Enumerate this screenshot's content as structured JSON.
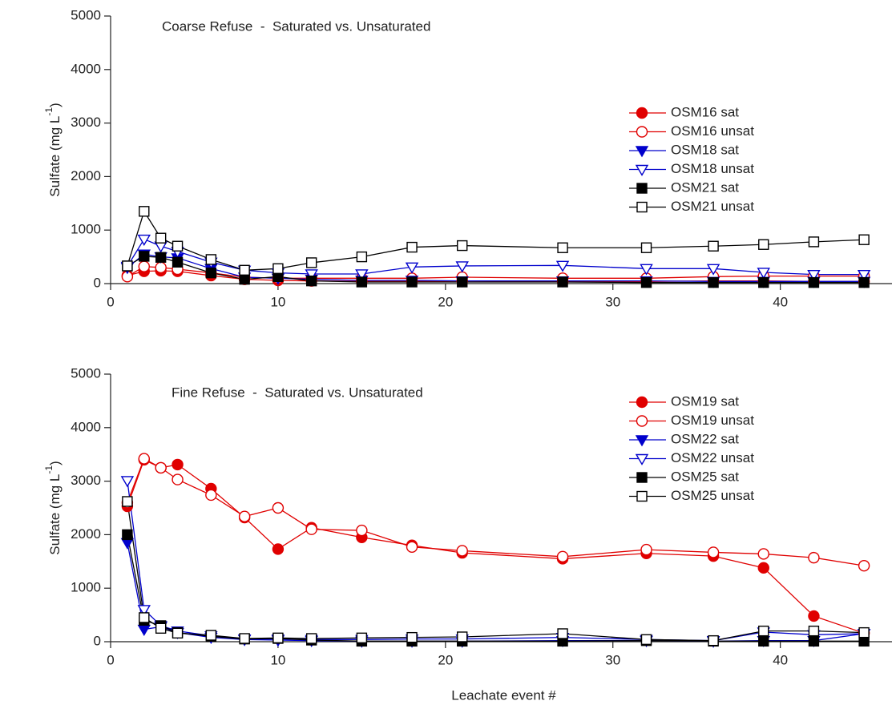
{
  "chart_data": [
    {
      "type": "line",
      "title": "Coarse Refuse  -  Saturated vs. Unsaturated",
      "y_label": "Sulfate (mg L",
      "y_label_sup": "-1",
      "y_label_end": ")",
      "x": [
        1,
        2,
        3,
        4,
        6,
        8,
        10,
        12,
        15,
        18,
        21,
        27,
        32,
        36,
        39,
        42,
        45
      ],
      "xlim": [
        0,
        46
      ],
      "xticks": [
        0,
        10,
        20,
        30,
        40
      ],
      "ylim": [
        0,
        5000
      ],
      "yticks": [
        0,
        1000,
        2000,
        3000,
        4000,
        5000
      ],
      "legend": "upper right",
      "series": [
        {
          "name": "OSM16 sat",
          "color": "#e00000",
          "marker": "circle",
          "filled": true,
          "values": [
            150,
            230,
            240,
            230,
            150,
            80,
            60,
            50,
            40,
            40,
            50,
            40,
            40,
            50,
            50,
            40,
            40
          ]
        },
        {
          "name": "OSM16 unsat",
          "color": "#e00000",
          "marker": "circle",
          "filled": false,
          "values": [
            130,
            320,
            300,
            270,
            200,
            120,
            100,
            100,
            100,
            100,
            120,
            100,
            100,
            130,
            140,
            140,
            140
          ]
        },
        {
          "name": "OSM18 sat",
          "color": "#0000cc",
          "marker": "triangle-down",
          "filled": true,
          "values": [
            300,
            550,
            500,
            480,
            280,
            120,
            100,
            80,
            60,
            60,
            50,
            50,
            50,
            40,
            40,
            40,
            40
          ]
        },
        {
          "name": "OSM18 unsat",
          "color": "#0000cc",
          "marker": "triangle-down",
          "filled": false,
          "values": [
            320,
            830,
            700,
            600,
            400,
            250,
            200,
            180,
            180,
            310,
            330,
            340,
            280,
            280,
            210,
            170,
            170
          ]
        },
        {
          "name": "OSM21 sat",
          "color": "#000000",
          "marker": "square",
          "filled": true,
          "values": [
            330,
            510,
            490,
            400,
            200,
            80,
            130,
            50,
            30,
            30,
            30,
            30,
            20,
            20,
            20,
            20,
            20
          ]
        },
        {
          "name": "OSM21 unsat",
          "color": "#000000",
          "marker": "square",
          "filled": false,
          "values": [
            330,
            1350,
            850,
            700,
            450,
            250,
            280,
            390,
            500,
            680,
            710,
            670,
            670,
            700,
            730,
            780,
            820
          ]
        }
      ]
    },
    {
      "type": "line",
      "title": "Fine Refuse  -  Saturated vs. Unsaturated",
      "y_label": "Sulfate (mg L",
      "y_label_sup": "-1",
      "y_label_end": ")",
      "x_label": "Leachate event #",
      "x": [
        1,
        2,
        3,
        4,
        6,
        8,
        10,
        12,
        15,
        18,
        21,
        27,
        32,
        36,
        39,
        42,
        45
      ],
      "xlim": [
        0,
        46
      ],
      "xticks": [
        0,
        10,
        20,
        30,
        40
      ],
      "ylim": [
        0,
        5000
      ],
      "yticks": [
        0,
        1000,
        2000,
        3000,
        4000,
        5000
      ],
      "legend": "upper right",
      "series": [
        {
          "name": "OSM19 sat",
          "color": "#e00000",
          "marker": "circle",
          "filled": true,
          "values": [
            2530,
            3400,
            3250,
            3310,
            2860,
            2320,
            1730,
            2130,
            1950,
            1800,
            1660,
            1550,
            1650,
            1600,
            1380,
            480,
            160
          ]
        },
        {
          "name": "OSM19 unsat",
          "color": "#e00000",
          "marker": "circle",
          "filled": false,
          "values": [
            2600,
            3420,
            3250,
            3030,
            2740,
            2340,
            2500,
            2100,
            2080,
            1770,
            1700,
            1590,
            1720,
            1670,
            1640,
            1570,
            1420
          ]
        },
        {
          "name": "OSM22 sat",
          "color": "#0000cc",
          "marker": "triangle-down",
          "filled": true,
          "values": [
            1850,
            230,
            280,
            170,
            80,
            40,
            30,
            20,
            10,
            10,
            10,
            20,
            20,
            10,
            20,
            20,
            150
          ]
        },
        {
          "name": "OSM22 unsat",
          "color": "#0000cc",
          "marker": "triangle-down",
          "filled": false,
          "values": [
            3010,
            600,
            300,
            200,
            110,
            50,
            50,
            40,
            40,
            50,
            50,
            80,
            40,
            20,
            180,
            130,
            150
          ]
        },
        {
          "name": "OSM25 sat",
          "color": "#000000",
          "marker": "square",
          "filled": true,
          "values": [
            2000,
            400,
            300,
            170,
            100,
            50,
            60,
            30,
            10,
            10,
            10,
            10,
            20,
            10,
            10,
            10,
            10
          ]
        },
        {
          "name": "OSM25 unsat",
          "color": "#000000",
          "marker": "square",
          "filled": false,
          "values": [
            2620,
            450,
            250,
            160,
            120,
            60,
            70,
            60,
            70,
            80,
            90,
            150,
            40,
            20,
            200,
            200,
            170
          ]
        }
      ]
    }
  ]
}
